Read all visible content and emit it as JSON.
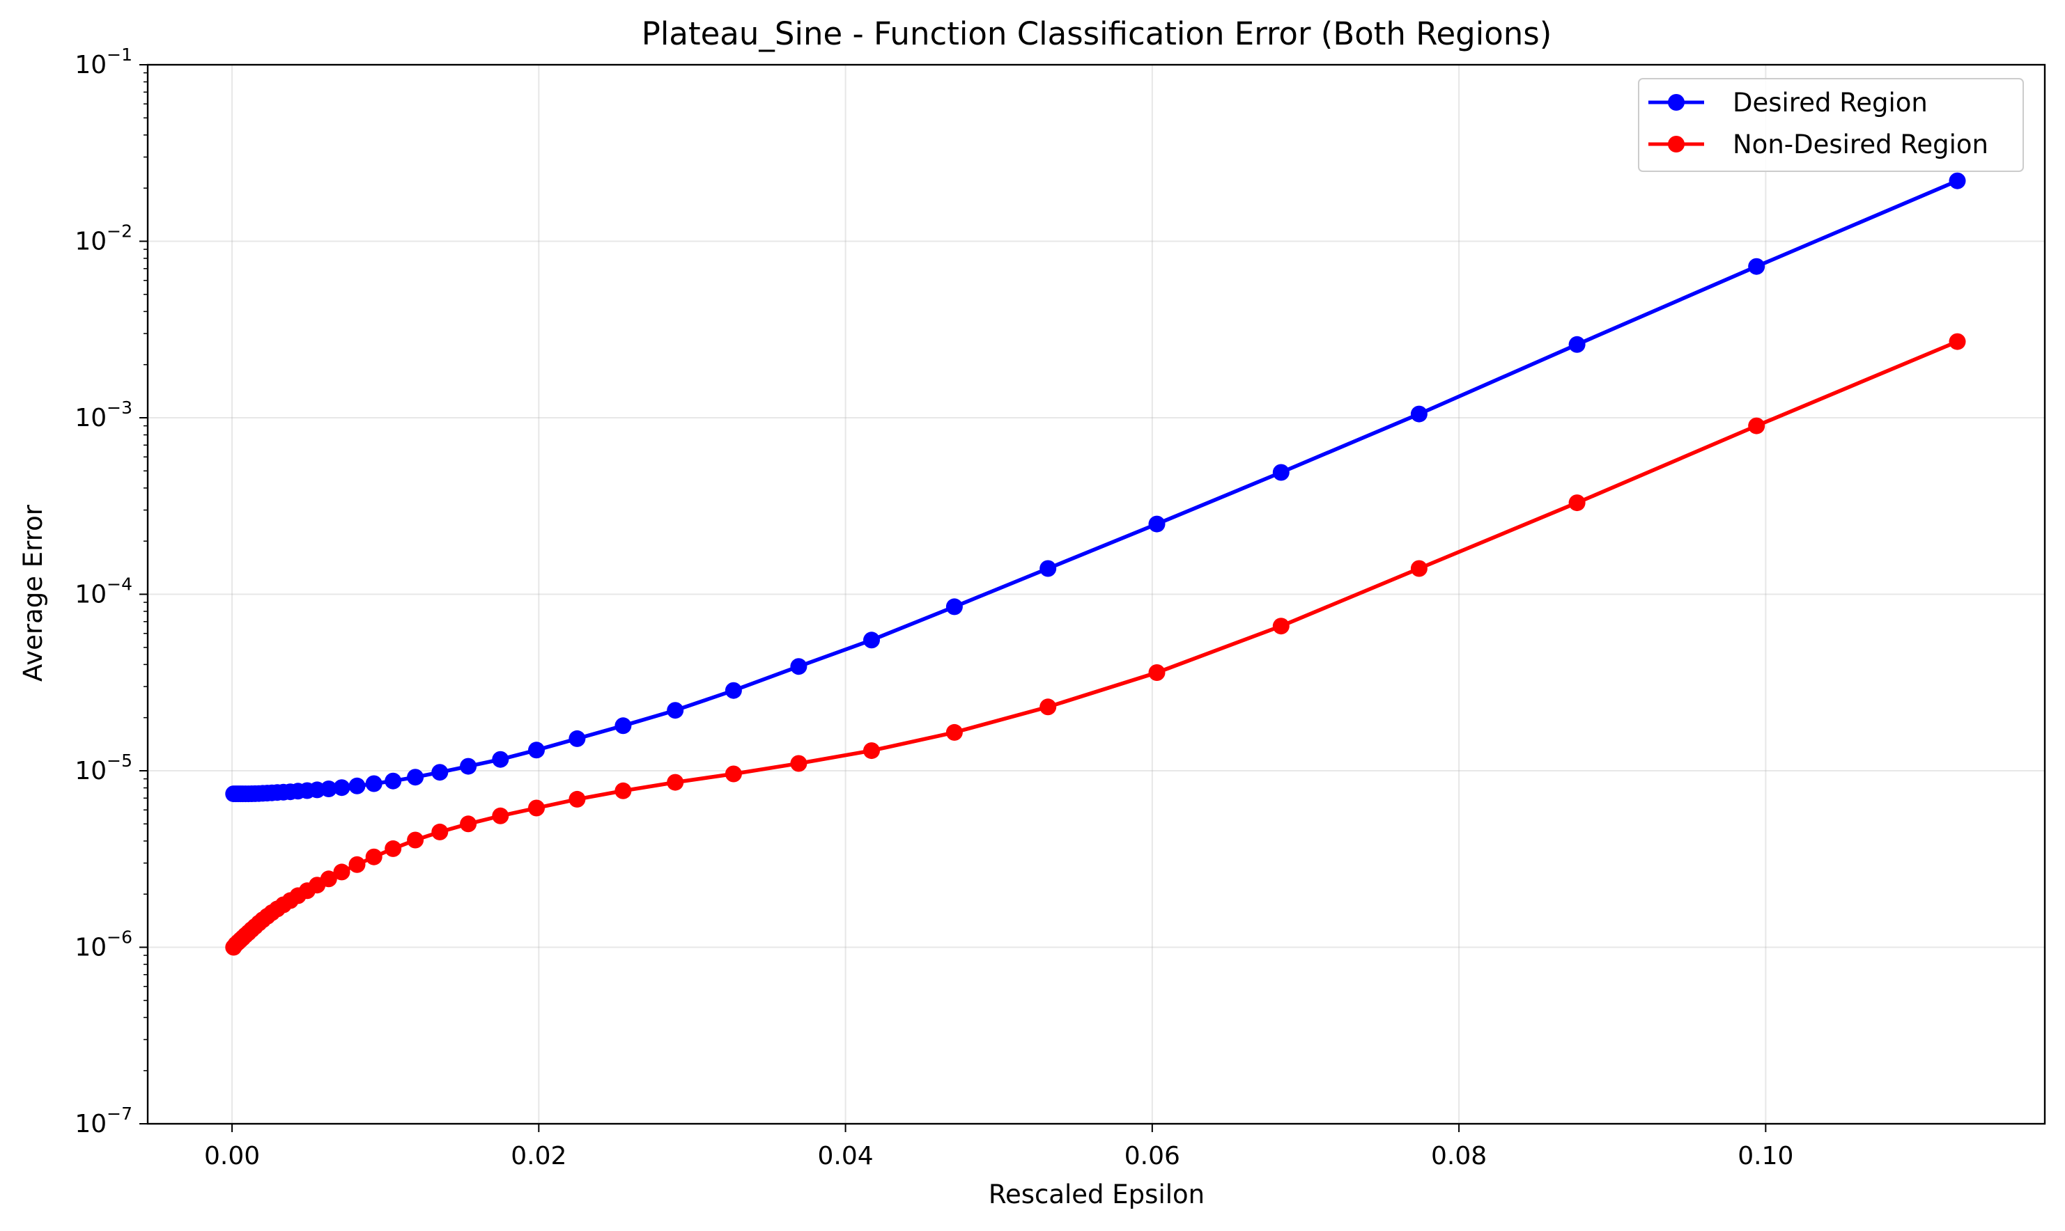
{
  "chart_data": {
    "type": "line",
    "title": "Plateau_Sine - Function Classification Error (Both Regions)",
    "xlabel": "Rescaled Epsilon",
    "ylabel": "Average Error",
    "xlim": [
      -0.0055,
      0.1182
    ],
    "ylim": [
      1e-07,
      0.1
    ],
    "yscale": "log",
    "grid": true,
    "legend_position": "top-right",
    "xticks": [
      {
        "value": 0.0,
        "label": "0.00"
      },
      {
        "value": 0.02,
        "label": "0.02"
      },
      {
        "value": 0.04,
        "label": "0.04"
      },
      {
        "value": 0.06,
        "label": "0.06"
      },
      {
        "value": 0.08,
        "label": "0.08"
      },
      {
        "value": 0.1,
        "label": "0.10"
      }
    ],
    "yticks": [
      {
        "value": 1e-07,
        "base": "10",
        "exp": "−7"
      },
      {
        "value": 1e-06,
        "base": "10",
        "exp": "−6"
      },
      {
        "value": 1e-05,
        "base": "10",
        "exp": "−5"
      },
      {
        "value": 0.0001,
        "base": "10",
        "exp": "−4"
      },
      {
        "value": 0.001,
        "base": "10",
        "exp": "−3"
      },
      {
        "value": 0.01,
        "base": "10",
        "exp": "−2"
      },
      {
        "value": 0.1,
        "base": "10",
        "exp": "−1"
      }
    ],
    "series": [
      {
        "name": "Desired Region",
        "color": "#0000ff",
        "x": [
          0.0001,
          0.00025,
          0.0004,
          0.00055,
          0.0007,
          0.00088,
          0.00107,
          0.00128,
          0.0015,
          0.00175,
          0.002,
          0.0023,
          0.0026,
          0.00295,
          0.00335,
          0.0038,
          0.0043,
          0.0049,
          0.00555,
          0.0063,
          0.00715,
          0.00815,
          0.00925,
          0.0105,
          0.01195,
          0.01355,
          0.0154,
          0.0175,
          0.01985,
          0.0225,
          0.0255,
          0.0289,
          0.0327,
          0.03695,
          0.0417,
          0.0471,
          0.0532,
          0.0603,
          0.0684,
          0.0774,
          0.0877,
          0.0994,
          0.1125
        ],
        "y": [
          7.4e-06,
          7.4e-06,
          7.4e-06,
          7.4e-06,
          7.4e-06,
          7.4e-06,
          7.4e-06,
          7.41e-06,
          7.42e-06,
          7.43e-06,
          7.45e-06,
          7.47e-06,
          7.5e-06,
          7.53e-06,
          7.56e-06,
          7.6e-06,
          7.66e-06,
          7.72e-06,
          7.8e-06,
          7.9e-06,
          8.03e-06,
          8.2e-06,
          8.45e-06,
          8.75e-06,
          9.2e-06,
          9.8e-06,
          1.06e-05,
          1.16e-05,
          1.31e-05,
          1.52e-05,
          1.8e-05,
          2.2e-05,
          2.85e-05,
          3.9e-05,
          5.5e-05,
          8.5e-05,
          0.00014,
          0.00025,
          0.00049,
          0.00105,
          0.0026,
          0.0072,
          0.022
        ]
      },
      {
        "name": "Non-Desired Region",
        "color": "#ff0000",
        "x": [
          0.0001,
          0.00025,
          0.0004,
          0.00055,
          0.0007,
          0.00088,
          0.00107,
          0.00128,
          0.0015,
          0.00175,
          0.002,
          0.0023,
          0.0026,
          0.00295,
          0.00335,
          0.0038,
          0.0043,
          0.0049,
          0.00555,
          0.0063,
          0.00715,
          0.00815,
          0.00925,
          0.0105,
          0.01195,
          0.01355,
          0.0154,
          0.0175,
          0.01985,
          0.0225,
          0.0255,
          0.0289,
          0.0327,
          0.03695,
          0.0417,
          0.0471,
          0.0532,
          0.0603,
          0.0684,
          0.0774,
          0.0877,
          0.0994,
          0.1125
        ],
        "y": [
          1e-06,
          1.04e-06,
          1.07e-06,
          1.1e-06,
          1.13e-06,
          1.17e-06,
          1.21e-06,
          1.26e-06,
          1.31e-06,
          1.37e-06,
          1.43e-06,
          1.5e-06,
          1.57e-06,
          1.65e-06,
          1.74e-06,
          1.84e-06,
          1.96e-06,
          2.09e-06,
          2.25e-06,
          2.44e-06,
          2.67e-06,
          2.94e-06,
          3.25e-06,
          3.62e-06,
          4.05e-06,
          4.5e-06,
          5e-06,
          5.55e-06,
          6.15e-06,
          6.9e-06,
          7.7e-06,
          8.6e-06,
          9.6e-06,
          1.1e-05,
          1.3e-05,
          1.65e-05,
          2.3e-05,
          3.6e-05,
          6.6e-05,
          0.00014,
          0.00033,
          0.0009,
          0.0027
        ]
      }
    ]
  }
}
